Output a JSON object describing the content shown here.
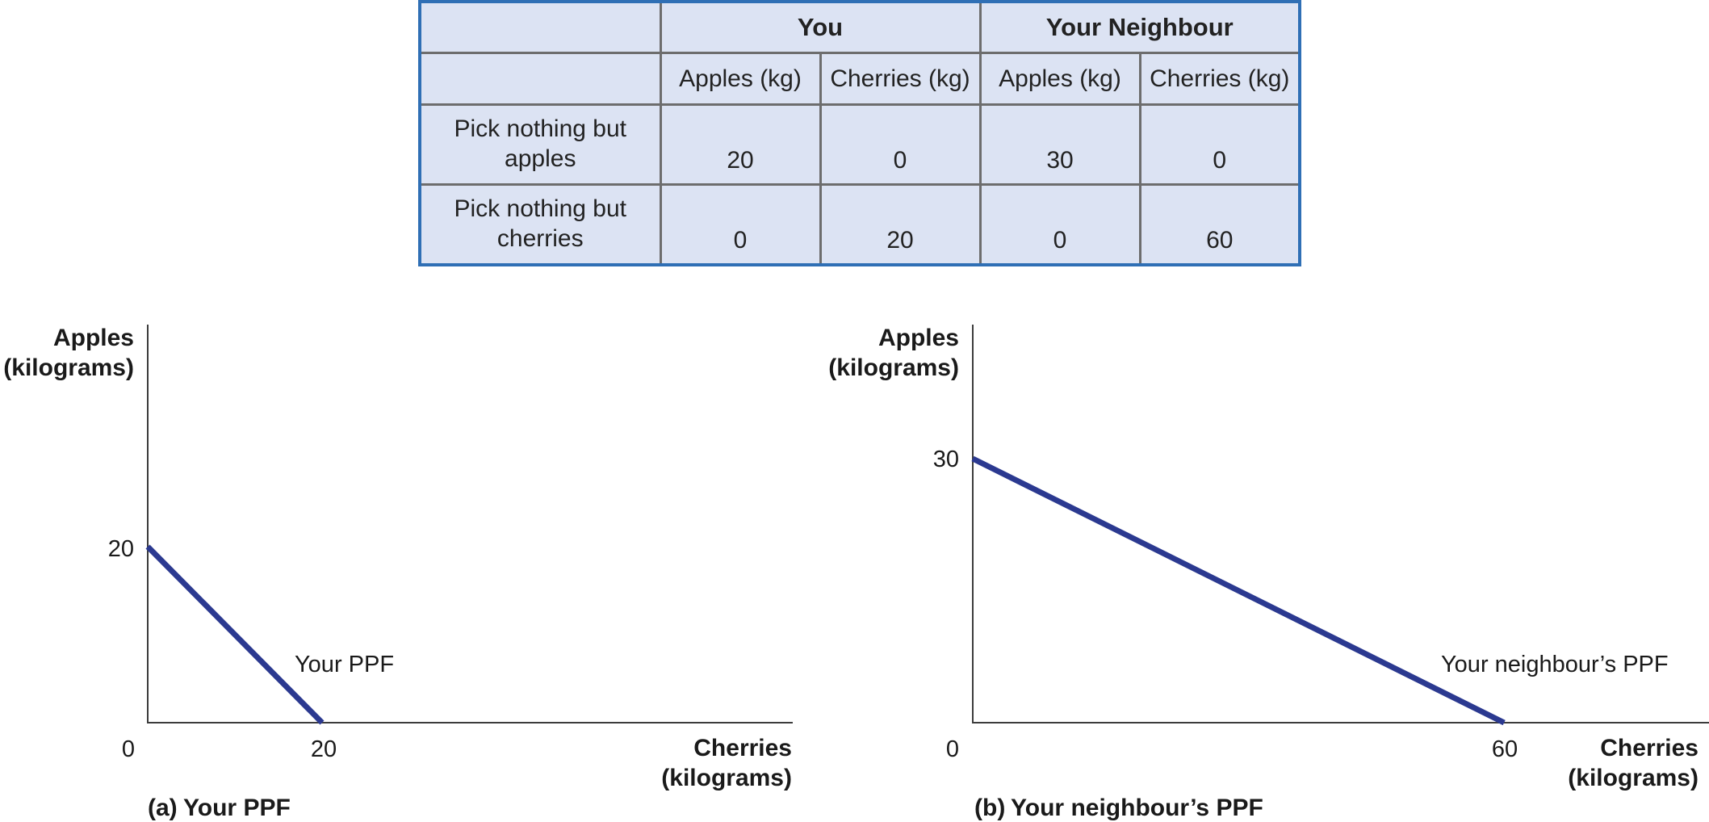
{
  "table": {
    "group_headers": [
      "You",
      "Your Neighbour"
    ],
    "sub_headers": [
      "Apples (kg)",
      "Cherries (kg)",
      "Apples (kg)",
      "Cherries (kg)"
    ],
    "rows": [
      {
        "label_line1": "Pick nothing but",
        "label_line2": "apples",
        "values": [
          "20",
          "0",
          "30",
          "0"
        ]
      },
      {
        "label_line1": "Pick nothing but",
        "label_line2": "cherries",
        "values": [
          "0",
          "20",
          "0",
          "60"
        ]
      }
    ],
    "colors": {
      "fill": "#dce3f3",
      "outer_border": "#2f6fb5",
      "inner_border": "#6d6d6d"
    }
  },
  "chart_data": [
    {
      "type": "line",
      "panel_letter": "(a)",
      "caption": "Your PPF",
      "ylabel_line1": "Apples",
      "ylabel_line2": "(kilograms)",
      "xlabel_line1": "Cherries",
      "xlabel_line2": "(kilograms)",
      "origin_label": "0",
      "x_tick_labels": [
        "20"
      ],
      "y_tick_labels": [
        "20"
      ],
      "xlim": [
        0,
        74
      ],
      "ylim": [
        0,
        45
      ],
      "series": [
        {
          "name": "Your PPF",
          "x": [
            0,
            20
          ],
          "y": [
            20,
            0
          ],
          "color": "#2b3990"
        }
      ]
    },
    {
      "type": "line",
      "panel_letter": "(b)",
      "caption": "Your neighbour’s PPF",
      "ylabel_line1": "Apples",
      "ylabel_line2": "(kilograms)",
      "xlabel_line1": "Cherries",
      "xlabel_line2": "(kilograms)",
      "origin_label": "0",
      "x_tick_labels": [
        "60"
      ],
      "y_tick_labels": [
        "30"
      ],
      "xlim": [
        0,
        74
      ],
      "ylim": [
        0,
        45
      ],
      "series": [
        {
          "name": "Your neighbour’s PPF",
          "x": [
            0,
            60
          ],
          "y": [
            30,
            0
          ],
          "color": "#2b3990"
        }
      ]
    }
  ]
}
